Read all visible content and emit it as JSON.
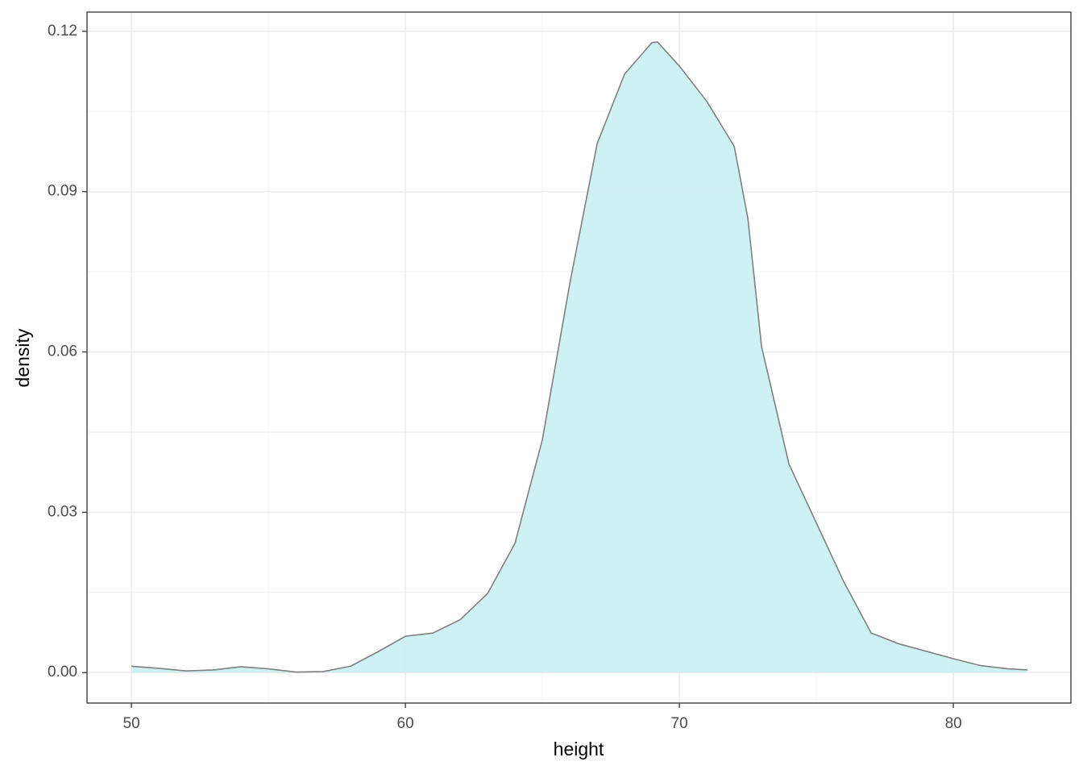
{
  "chart_data": {
    "type": "area",
    "x_label": "height",
    "y_label": "density",
    "x": [
      50,
      51,
      52,
      53,
      54,
      55,
      56,
      57,
      58,
      59,
      60,
      61,
      62,
      63,
      64,
      65,
      66,
      67,
      68,
      69,
      69.2,
      70,
      71,
      72,
      72.5,
      73,
      74,
      75,
      76,
      77,
      78,
      79,
      80,
      81,
      82,
      82.7
    ],
    "values": [
      0.0012,
      0.0008,
      0.0003,
      0.0005,
      0.0011,
      0.0007,
      0.0001,
      0.0002,
      0.0012,
      0.0039,
      0.0068,
      0.0074,
      0.0099,
      0.0148,
      0.0242,
      0.0436,
      0.0728,
      0.099,
      0.112,
      0.1179,
      0.118,
      0.1135,
      0.1069,
      0.0985,
      0.085,
      0.061,
      0.039,
      0.028,
      0.017,
      0.0074,
      0.0054,
      0.004,
      0.0026,
      0.0013,
      0.0007,
      0.0005
    ],
    "color": "#cbf0f2",
    "line_color": "#808080",
    "xlim": [
      48.38,
      84.29
    ],
    "ylim": [
      -0.0057,
      0.1236
    ],
    "xticks": [
      50,
      60,
      70,
      80
    ],
    "yticks": [
      {
        "value": 0,
        "label": "0.00"
      },
      0.03,
      0.06,
      0.09,
      0.12
    ],
    "x_minor_ticks": [
      55,
      65,
      75
    ],
    "y_minor_ticks": [
      0.015,
      0.045,
      0.075,
      0.105
    ],
    "grid": true
  }
}
